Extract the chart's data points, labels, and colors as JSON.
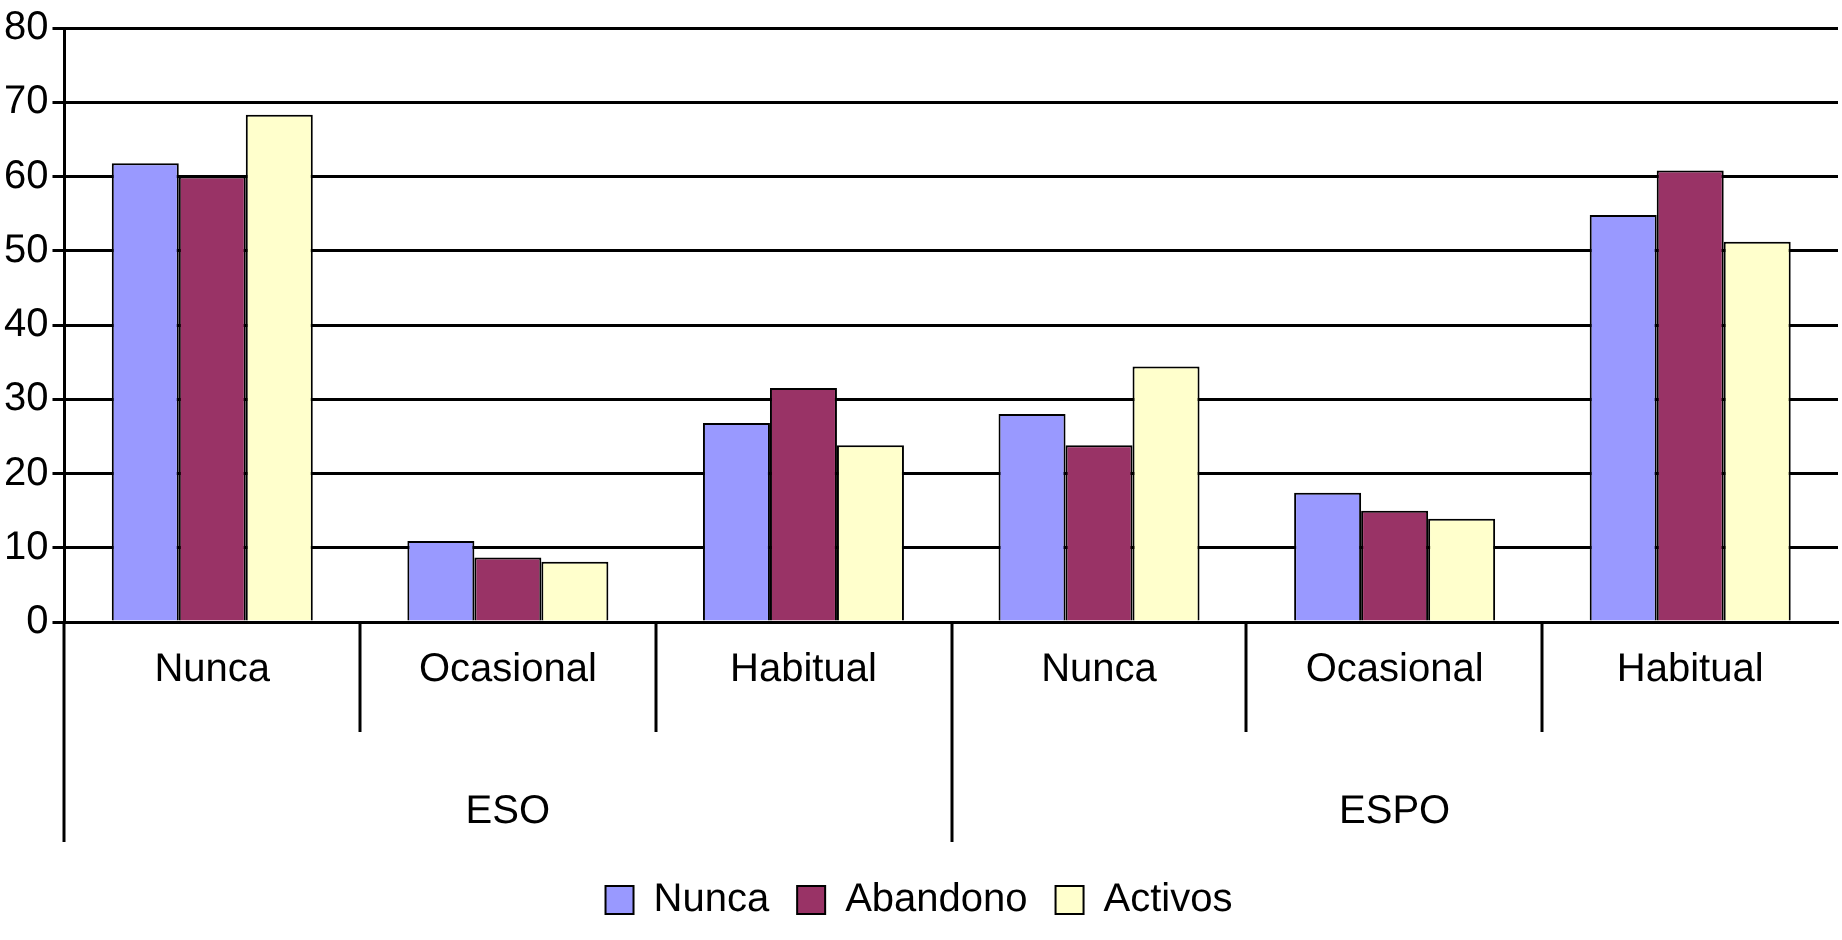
{
  "chart_data": {
    "type": "bar",
    "categories": [
      "Nunca",
      "Ocasional",
      "Habitual",
      "Nunca",
      "Ocasional",
      "Habitual"
    ],
    "annotations": [
      "ESO",
      "ESPO"
    ],
    "series": [
      {
        "name": "Nunca",
        "color": "#9999ff",
        "values": [
          61.8,
          10.9,
          26.8,
          28,
          17.4,
          54.8
        ]
      },
      {
        "name": "Abandono",
        "color": "#993366",
        "values": [
          60,
          8.7,
          31.5,
          23.8,
          15,
          60.8
        ]
      },
      {
        "name": "Activos",
        "color": "#ffffcc",
        "values": [
          68.3,
          8.1,
          23.8,
          34.4,
          13.9,
          51.2
        ]
      }
    ],
    "ylim": [
      0,
      80
    ],
    "yticks": [
      0,
      10,
      20,
      30,
      40,
      50,
      60,
      70,
      80
    ],
    "grid": "y",
    "legend": "bottom"
  }
}
